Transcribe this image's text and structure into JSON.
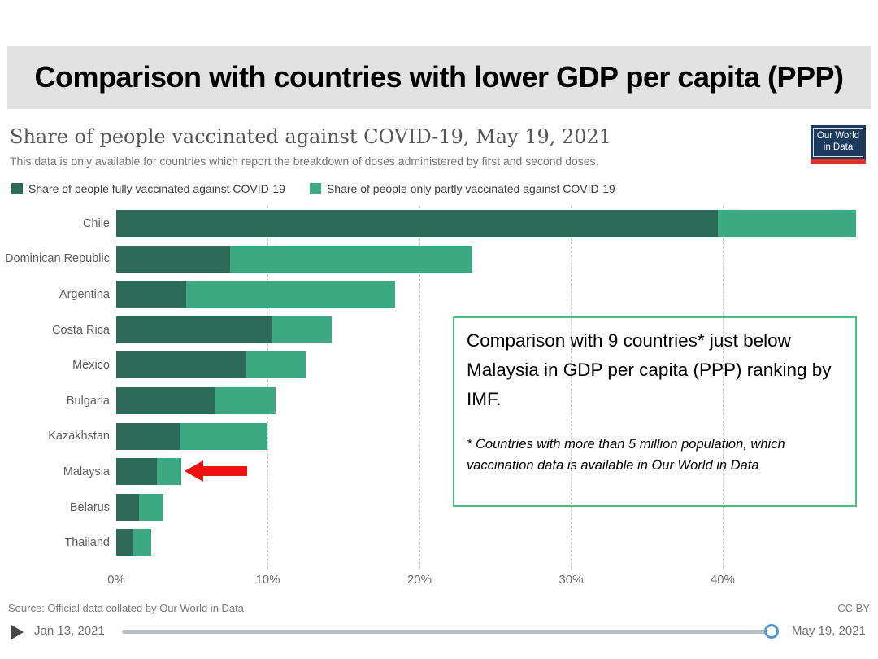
{
  "slide": {
    "title": "Comparison with countries with lower GDP per capita (PPP)"
  },
  "chart": {
    "title": "Share of people vaccinated against COVID-19, May 19, 2021",
    "subtitle": "This data is only available for countries which report the breakdown of doses administered by first and second doses.",
    "logo": {
      "line1": "Our World",
      "line2": "in Data",
      "bg_color": "#1d3a5f",
      "accent_color": "#d9352c"
    },
    "source": "Source: Official data collated by Our World in Data",
    "license": "CC BY",
    "timeline": {
      "start": "Jan 13, 2021",
      "end": "May 19, 2021",
      "handle_color": "#4a97d6"
    }
  },
  "annotation": {
    "main": "Comparison with 9 countries* just below Malaysia in GDP per capita (PPP) ranking by IMF.",
    "footnote": "* Countries with more than 5 million population, which vaccination data is available in Our World in Data",
    "border_color": "#47c17f"
  },
  "arrow": {
    "color": "#ee1111",
    "target": "Malaysia"
  },
  "chart_data": {
    "type": "bar",
    "orientation": "horizontal",
    "stacked": true,
    "grid": "dashed-vertical",
    "categories": [
      "Chile",
      "Dominican Republic",
      "Argentina",
      "Costa Rica",
      "Mexico",
      "Bulgaria",
      "Kazakhstan",
      "Malaysia",
      "Belarus",
      "Thailand"
    ],
    "series": [
      {
        "name": "Share of people fully vaccinated against COVID-19",
        "color": "#2d6a57",
        "values": [
          39.7,
          7.5,
          4.6,
          10.3,
          8.6,
          6.5,
          4.2,
          2.7,
          1.5,
          1.1
        ]
      },
      {
        "name": "Share of people only partly vaccinated against COVID-19",
        "color": "#3da983",
        "values": [
          9.1,
          16.0,
          13.8,
          3.9,
          3.9,
          4.0,
          5.8,
          1.6,
          1.6,
          1.2
        ]
      }
    ],
    "totals": [
      48.8,
      23.5,
      18.4,
      14.2,
      12.5,
      10.5,
      10.0,
      4.3,
      3.1,
      2.3
    ],
    "tick_values": [
      0,
      10,
      20,
      30,
      40
    ],
    "tick_labels": [
      "0%",
      "10%",
      "20%",
      "30%",
      "40%"
    ],
    "xmax": 48.8
  }
}
